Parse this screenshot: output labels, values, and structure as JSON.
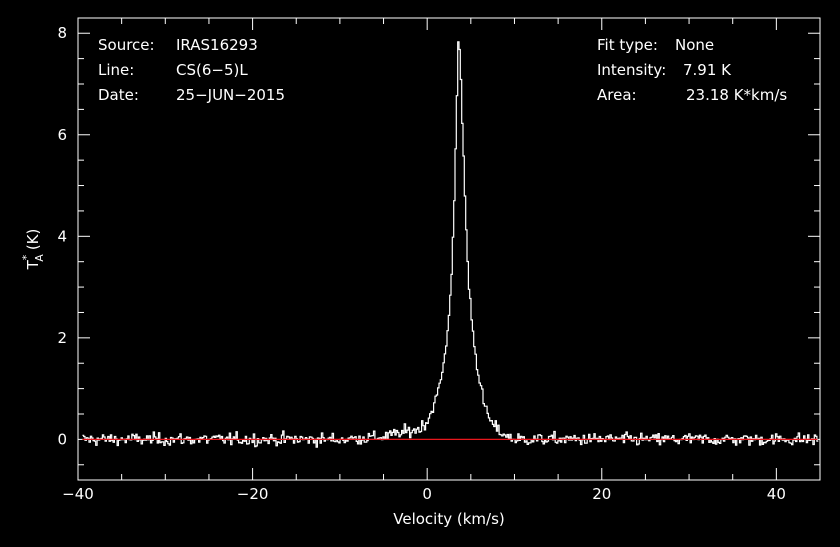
{
  "chart_data": {
    "type": "line",
    "title": "",
    "xlabel": "Velocity (km/s)",
    "ylabel": "(K)",
    "ylabel_symbol": "T",
    "ylabel_superscript": "*",
    "ylabel_subscript": "A",
    "xlim": [
      -40,
      45
    ],
    "ylim": [
      -0.8,
      8.3
    ],
    "x_ticks": [
      -40,
      -20,
      0,
      20,
      40
    ],
    "x_tick_labels": [
      "−40",
      "−20",
      "0",
      "20",
      "40"
    ],
    "y_ticks": [
      0,
      2,
      4,
      6,
      8
    ],
    "y_tick_labels": [
      "0",
      "2",
      "4",
      "6",
      "8"
    ],
    "grid": false,
    "background_color": "#000000",
    "foreground_color": "#ffffff",
    "series": [
      {
        "style": "histogram",
        "color": "#ffffff",
        "noise_rms": 0.1,
        "x": [
          -40,
          -30,
          -20,
          -10,
          -5,
          -1,
          0,
          0.5,
          1,
          1.5,
          2,
          2.5,
          2.8,
          3.1,
          3.4,
          3.6,
          3.8,
          4.0,
          4.2,
          4.4,
          4.7,
          5.0,
          5.5,
          6.0,
          6.5,
          7.0,
          7.5,
          8.0,
          9,
          10,
          15,
          20,
          30,
          45
        ],
        "y": [
          0,
          0,
          0,
          0,
          0.05,
          0.2,
          0.35,
          0.55,
          0.8,
          1.1,
          1.6,
          2.4,
          3.3,
          4.7,
          6.6,
          7.9,
          7.6,
          6.3,
          5.5,
          4.5,
          3.2,
          2.6,
          1.7,
          1.2,
          0.7,
          0.45,
          0.3,
          0.2,
          0.08,
          0,
          0,
          0,
          0,
          0
        ]
      },
      {
        "name": "",
        "style": "baseline",
        "color": "#e8171d",
        "x": [
          -40,
          45
        ],
        "y": [
          0,
          0
        ]
      }
    ],
    "annotations": {
      "left": [
        {
          "label": "Source:",
          "value": "IRAS16293"
        },
        {
          "label": "Line:",
          "value": "CS(6−5)L"
        },
        {
          "label": "Date:",
          "value": "25−JUN−2015"
        }
      ],
      "right": [
        {
          "label": "Fit type:",
          "value": "None"
        },
        {
          "label": "Intensity:",
          "value": "7.91 K"
        },
        {
          "label": "Area:",
          "value": "23.18 K*km/s"
        }
      ]
    }
  }
}
